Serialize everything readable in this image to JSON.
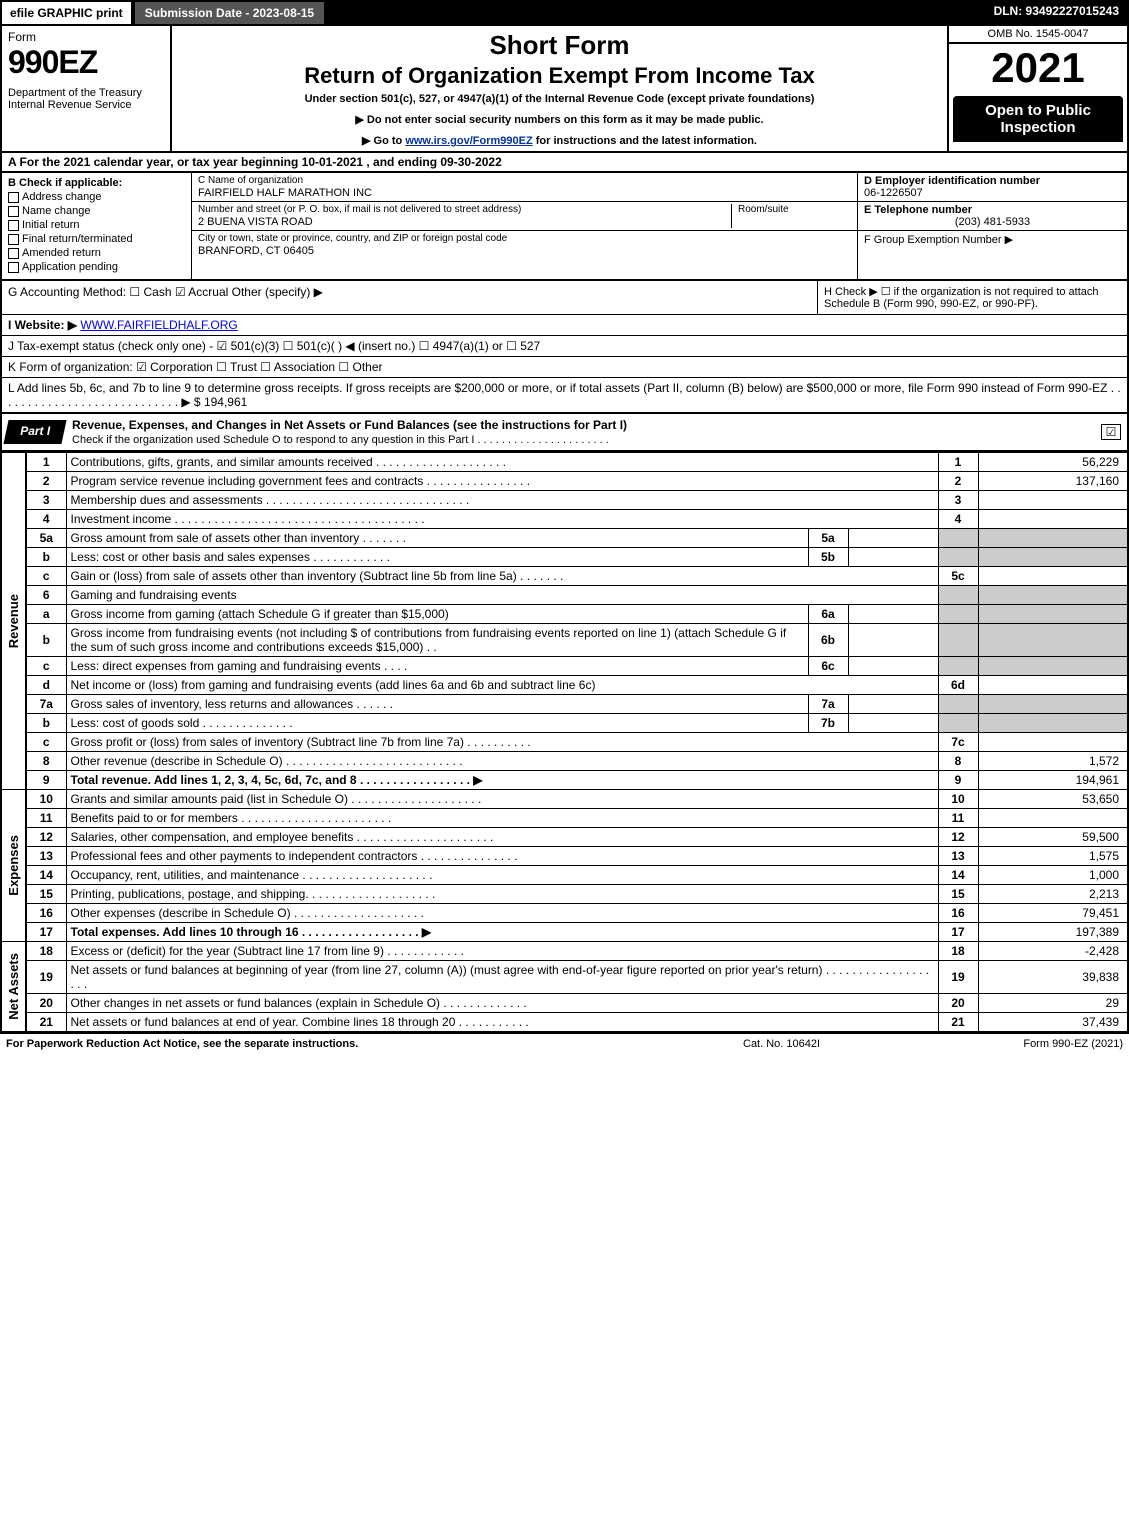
{
  "topbar": {
    "efile": "efile GRAPHIC print",
    "subdate": "Submission Date - 2023-08-15",
    "dln": "DLN: 93492227015243"
  },
  "header": {
    "form": "Form",
    "f990": "990EZ",
    "dept": "Department of the Treasury\nInternal Revenue Service",
    "short": "Short Form",
    "return": "Return of Organization Exempt From Income Tax",
    "under": "Under section 501(c), 527, or 4947(a)(1) of the Internal Revenue Code (except private foundations)",
    "note1": "▶ Do not enter social security numbers on this form as it may be made public.",
    "note2_pre": "▶ Go to ",
    "note2_link": "www.irs.gov/Form990EZ",
    "note2_post": " for instructions and the latest information.",
    "omb": "OMB No. 1545-0047",
    "year": "2021",
    "open": "Open to Public Inspection"
  },
  "A": "A  For the 2021 calendar year, or tax year beginning 10-01-2021 , and ending 09-30-2022",
  "B": {
    "label": "B  Check if applicable:",
    "opts": [
      "Address change",
      "Name change",
      "Initial return",
      "Final return/terminated",
      "Amended return",
      "Application pending"
    ]
  },
  "C": {
    "name_lab": "C Name of organization",
    "name": "FAIRFIELD HALF MARATHON INC",
    "addr_lab": "Number and street (or P. O. box, if mail is not delivered to street address)",
    "addr": "2 BUENA VISTA ROAD",
    "room_lab": "Room/suite",
    "city_lab": "City or town, state or province, country, and ZIP or foreign postal code",
    "city": "BRANFORD, CT  06405"
  },
  "D": {
    "ein_lab": "D Employer identification number",
    "ein": "06-1226507",
    "tel_lab": "E Telephone number",
    "tel": "(203) 481-5933",
    "grp_lab": "F Group Exemption Number  ▶"
  },
  "G": "G Accounting Method:   ☐ Cash   ☑ Accrual   Other (specify) ▶",
  "H": "H  Check ▶  ☐  if the organization is not required to attach Schedule B (Form 990, 990-EZ, or 990-PF).",
  "I_pre": "I Website: ▶",
  "I_link": "WWW.FAIRFIELDHALF.ORG",
  "J": "J Tax-exempt status (check only one) -  ☑ 501(c)(3)  ☐ 501(c)(  ) ◀ (insert no.)  ☐ 4947(a)(1) or  ☐ 527",
  "K": "K Form of organization:   ☑ Corporation   ☐ Trust   ☐ Association   ☐ Other",
  "L": "L Add lines 5b, 6c, and 7b to line 9 to determine gross receipts. If gross receipts are $200,000 or more, or if total assets (Part II, column (B) below) are $500,000 or more, file Form 990 instead of Form 990-EZ  .  .  .  .  .  .  .  .  .  .  .  .  .  .  .  .  .  .  .  .  .  .  .  .  .  .  .  .  ▶ $ 194,961",
  "part1": {
    "tab": "Part I",
    "title": "Revenue, Expenses, and Changes in Net Assets or Fund Balances (see the instructions for Part I)",
    "sub": "Check if the organization used Schedule O to respond to any question in this Part I  .  .  .  .  .  .  .  .  .  .  .  .  .  .  .  .  .  .  .  .  .  .",
    "check": "☑"
  },
  "sections": {
    "revenue": "Revenue",
    "expenses": "Expenses",
    "netassets": "Net Assets"
  },
  "lines": [
    {
      "n": "1",
      "d": "Contributions, gifts, grants, and similar amounts received  .  .  .  .  .  .  .  .  .  .  .  .  .  .  .  .  .  .  .  .",
      "r": "1",
      "a": "56,229"
    },
    {
      "n": "2",
      "d": "Program service revenue including government fees and contracts  .  .  .  .  .  .  .  .  .  .  .  .  .  .  .  .",
      "r": "2",
      "a": "137,160"
    },
    {
      "n": "3",
      "d": "Membership dues and assessments  .  .  .  .  .  .  .  .  .  .  .  .  .  .  .  .  .  .  .  .  .  .  .  .  .  .  .  .  .  .  .",
      "r": "3",
      "a": ""
    },
    {
      "n": "4",
      "d": "Investment income  .  .  .  .  .  .  .  .  .  .  .  .  .  .  .  .  .  .  .  .  .  .  .  .  .  .  .  .  .  .  .  .  .  .  .  .  .  .",
      "r": "4",
      "a": ""
    },
    {
      "n": "5a",
      "d": "Gross amount from sale of assets other than inventory  .  .  .  .  .  .  .",
      "sn": "5a",
      "sv": "",
      "grey": true
    },
    {
      "n": "b",
      "d": "Less: cost or other basis and sales expenses  .  .  .  .  .  .  .  .  .  .  .  .",
      "sn": "5b",
      "sv": "",
      "grey": true
    },
    {
      "n": "c",
      "d": "Gain or (loss) from sale of assets other than inventory (Subtract line 5b from line 5a)  .  .  .  .  .  .  .",
      "r": "5c",
      "a": ""
    },
    {
      "n": "6",
      "d": "Gaming and fundraising events",
      "grey": true
    },
    {
      "n": "a",
      "d": "Gross income from gaming (attach Schedule G if greater than $15,000)",
      "sn": "6a",
      "sv": "",
      "grey": true
    },
    {
      "n": "b",
      "d": "Gross income from fundraising events (not including $                           of contributions from fundraising events reported on line 1) (attach Schedule G if the sum of such gross income and contributions exceeds $15,000)      .   .",
      "sn": "6b",
      "sv": "",
      "grey": true
    },
    {
      "n": "c",
      "d": "Less: direct expenses from gaming and fundraising events   .   .   .   .",
      "sn": "6c",
      "sv": "",
      "grey": true
    },
    {
      "n": "d",
      "d": "Net income or (loss) from gaming and fundraising events (add lines 6a and 6b and subtract line 6c)",
      "r": "6d",
      "a": ""
    },
    {
      "n": "7a",
      "d": "Gross sales of inventory, less returns and allowances  .  .  .  .  .  .",
      "sn": "7a",
      "sv": "",
      "grey": true
    },
    {
      "n": "b",
      "d": "Less: cost of goods sold        .   .   .   .   .   .   .   .   .   .   .   .   .   .",
      "sn": "7b",
      "sv": "",
      "grey": true
    },
    {
      "n": "c",
      "d": "Gross profit or (loss) from sales of inventory (Subtract line 7b from line 7a)  .  .  .  .  .  .  .  .  .  .",
      "r": "7c",
      "a": ""
    },
    {
      "n": "8",
      "d": "Other revenue (describe in Schedule O)  .  .  .  .  .  .  .  .  .  .  .  .  .  .  .  .  .  .  .  .  .  .  .  .  .  .  .",
      "r": "8",
      "a": "1,572"
    },
    {
      "n": "9",
      "d": "Total revenue. Add lines 1, 2, 3, 4, 5c, 6d, 7c, and 8   .  .  .  .  .  .  .  .  .  .  .  .  .  .  .  .  .     ▶",
      "r": "9",
      "a": "194,961",
      "bold": true
    }
  ],
  "exp": [
    {
      "n": "10",
      "d": "Grants and similar amounts paid (list in Schedule O)  .  .  .  .  .  .  .  .  .  .  .  .  .  .  .  .  .  .  .  .",
      "r": "10",
      "a": "53,650"
    },
    {
      "n": "11",
      "d": "Benefits paid to or for members    .   .   .   .   .   .   .   .   .   .   .   .   .   .   .   .   .   .   .   .   .   .   .",
      "r": "11",
      "a": ""
    },
    {
      "n": "12",
      "d": "Salaries, other compensation, and employee benefits  .  .  .  .  .  .  .  .  .  .  .  .  .  .  .  .  .  .  .  .  .",
      "r": "12",
      "a": "59,500"
    },
    {
      "n": "13",
      "d": "Professional fees and other payments to independent contractors  .  .  .  .  .  .  .  .  .  .  .  .  .  .  .",
      "r": "13",
      "a": "1,575"
    },
    {
      "n": "14",
      "d": "Occupancy, rent, utilities, and maintenance .   .   .   .   .   .   .   .   .   .   .   .   .   .   .   .   .   .   .   .",
      "r": "14",
      "a": "1,000"
    },
    {
      "n": "15",
      "d": "Printing, publications, postage, and shipping.   .   .   .   .   .   .   .   .   .   .   .   .   .   .   .   .   .   .   .",
      "r": "15",
      "a": "2,213"
    },
    {
      "n": "16",
      "d": "Other expenses (describe in Schedule O)    .   .   .   .   .   .   .   .   .   .   .   .   .   .   .   .   .   .   .   .",
      "r": "16",
      "a": "79,451"
    },
    {
      "n": "17",
      "d": "Total expenses. Add lines 10 through 16    .   .   .   .   .   .   .   .   .   .   .   .   .   .   .   .   .   .   ▶",
      "r": "17",
      "a": "197,389",
      "bold": true
    }
  ],
  "net": [
    {
      "n": "18",
      "d": "Excess or (deficit) for the year (Subtract line 17 from line 9)       .   .   .   .   .   .   .   .   .   .   .   .",
      "r": "18",
      "a": "-2,428"
    },
    {
      "n": "19",
      "d": "Net assets or fund balances at beginning of year (from line 27, column (A)) (must agree with end-of-year figure reported on prior year's return) .   .   .   .   .   .   .   .   .   .   .   .   .   .   .   .   .   .   .",
      "r": "19",
      "a": "39,838"
    },
    {
      "n": "20",
      "d": "Other changes in net assets or fund balances (explain in Schedule O)  .  .  .  .  .  .  .  .  .  .  .  .  .",
      "r": "20",
      "a": "29"
    },
    {
      "n": "21",
      "d": "Net assets or fund balances at end of year. Combine lines 18 through 20  .  .  .  .  .  .  .  .  .  .  .",
      "r": "21",
      "a": "37,439"
    }
  ],
  "footer": {
    "left": "For Paperwork Reduction Act Notice, see the separate instructions.",
    "mid": "Cat. No. 10642I",
    "right": "Form 990-EZ (2021)"
  }
}
